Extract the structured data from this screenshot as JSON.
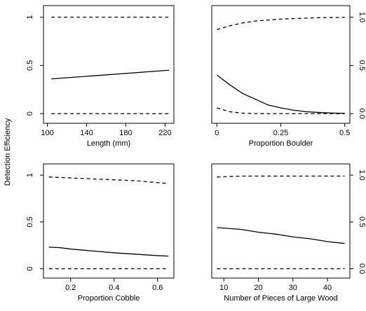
{
  "figure": {
    "ylabel": "Detection Efficiency"
  },
  "chart_data": [
    {
      "type": "line",
      "xlabel": "Length (mm)",
      "xlim": [
        96,
        229
      ],
      "ylim": [
        -0.1,
        1.12
      ],
      "xticks": [
        100,
        140,
        180,
        220
      ],
      "xtick_labels": [
        "100",
        "140",
        "180",
        "220"
      ],
      "yticks": [
        0,
        0.5,
        1
      ],
      "ytick_labels": [
        "0",
        "0.5",
        "1"
      ],
      "yaxis_side": "left",
      "series": [
        {
          "style": "solid",
          "x": [
            104,
            224
          ],
          "y": [
            0.36,
            0.45
          ]
        },
        {
          "style": "dashed",
          "x": [
            104,
            224
          ],
          "y": [
            0.0,
            0.0
          ]
        },
        {
          "style": "dashed",
          "x": [
            104,
            224
          ],
          "y": [
            1.0,
            1.0
          ]
        }
      ]
    },
    {
      "type": "line",
      "xlabel": "Proportion Boulder",
      "xlim": [
        -0.02,
        0.52
      ],
      "ylim": [
        -0.1,
        1.12
      ],
      "xticks": [
        0,
        0.25,
        0.5
      ],
      "xtick_labels": [
        "0",
        "0.25",
        "0.5"
      ],
      "yticks": [
        0,
        0.5,
        1
      ],
      "ytick_labels": [
        "0.0",
        "0.5",
        "1.0"
      ],
      "yaxis_side": "right",
      "series": [
        {
          "style": "solid",
          "x": [
            0,
            0.05,
            0.1,
            0.15,
            0.2,
            0.25,
            0.3,
            0.35,
            0.4,
            0.45,
            0.5
          ],
          "y": [
            0.4,
            0.3,
            0.21,
            0.15,
            0.09,
            0.06,
            0.035,
            0.02,
            0.012,
            0.006,
            0.003
          ]
        },
        {
          "style": "dashed",
          "x": [
            0,
            0.05,
            0.1,
            0.15,
            0.2,
            0.25,
            0.3,
            0.35,
            0.4,
            0.45,
            0.5
          ],
          "y": [
            0.06,
            0.02,
            0.005,
            0.001,
            0,
            0,
            0,
            0,
            0,
            0,
            0
          ]
        },
        {
          "style": "dashed",
          "x": [
            0,
            0.05,
            0.1,
            0.15,
            0.2,
            0.25,
            0.3,
            0.35,
            0.4,
            0.45,
            0.5
          ],
          "y": [
            0.87,
            0.91,
            0.94,
            0.96,
            0.97,
            0.98,
            0.985,
            0.99,
            0.995,
            0.997,
            0.999
          ]
        }
      ]
    },
    {
      "type": "line",
      "xlabel": "Proportion Cobble",
      "xlim": [
        0.075,
        0.675
      ],
      "ylim": [
        -0.1,
        1.12
      ],
      "xticks": [
        0.2,
        0.4,
        0.6
      ],
      "xtick_labels": [
        "0.2",
        "0.4",
        "0.6"
      ],
      "yticks": [
        0,
        0.5,
        1
      ],
      "ytick_labels": [
        "0",
        "0.5",
        "1"
      ],
      "yaxis_side": "left",
      "series": [
        {
          "style": "solid",
          "x": [
            0.1,
            0.15,
            0.2,
            0.3,
            0.4,
            0.5,
            0.6,
            0.65
          ],
          "y": [
            0.23,
            0.225,
            0.21,
            0.19,
            0.17,
            0.155,
            0.14,
            0.135
          ]
        },
        {
          "style": "dashed",
          "x": [
            0.1,
            0.65
          ],
          "y": [
            0.0,
            0.0
          ]
        },
        {
          "style": "dashed",
          "x": [
            0.1,
            0.2,
            0.3,
            0.4,
            0.5,
            0.6,
            0.65
          ],
          "y": [
            0.98,
            0.97,
            0.96,
            0.95,
            0.94,
            0.92,
            0.91
          ]
        }
      ]
    },
    {
      "type": "line",
      "xlabel": "Number of Pieces of Large Wood",
      "xlim": [
        6.5,
        46.5
      ],
      "ylim": [
        -0.1,
        1.12
      ],
      "xticks": [
        10,
        20,
        30,
        40
      ],
      "xtick_labels": [
        "10",
        "20",
        "30",
        "40"
      ],
      "yticks": [
        0,
        0.5,
        1
      ],
      "ytick_labels": [
        "0.0",
        "0.5",
        "1.0"
      ],
      "yaxis_side": "right",
      "series": [
        {
          "style": "solid",
          "x": [
            8,
            15,
            20,
            25,
            30,
            35,
            40,
            45
          ],
          "y": [
            0.44,
            0.42,
            0.39,
            0.37,
            0.34,
            0.32,
            0.29,
            0.27
          ]
        },
        {
          "style": "dashed",
          "x": [
            8,
            45
          ],
          "y": [
            0.0,
            0.0
          ]
        },
        {
          "style": "dashed",
          "x": [
            8,
            15,
            45
          ],
          "y": [
            0.98,
            0.99,
            0.99
          ]
        }
      ]
    }
  ]
}
